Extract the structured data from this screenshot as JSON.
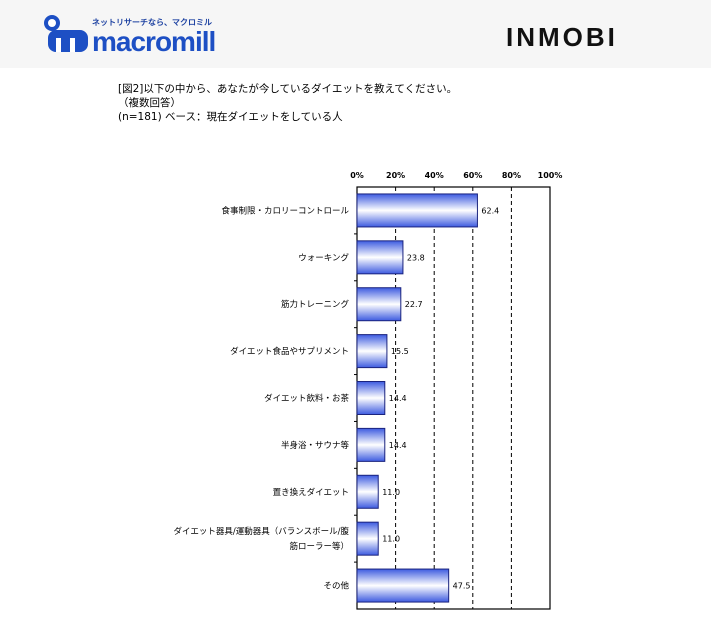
{
  "header": {
    "macromill_tagline": "ネットリサーチなら、マクロミル",
    "macromill_logo": "macromill",
    "inmobi_logo": "INMOBI"
  },
  "question": {
    "line1": "[図2]以下の中から、あなたが今しているダイエットを教えてください。",
    "line2": "（複数回答）",
    "line3": "(n=181) ベース：現在ダイエットをしている人"
  },
  "chart_data": {
    "type": "bar",
    "orientation": "horizontal",
    "categories": [
      "食事制限・カロリーコントロール",
      "ウォーキング",
      "筋力トレーニング",
      "ダイエット食品やサプリメント",
      "ダイエット飲料・お茶",
      "半身浴・サウナ等",
      "置き換えダイエット",
      "ダイエット器具/運動器具（バランスボール/腹筋ローラー等）",
      "その他"
    ],
    "category_lines": [
      [
        "食事制限・カロリーコントロール"
      ],
      [
        "ウォーキング"
      ],
      [
        "筋力トレーニング"
      ],
      [
        "ダイエット食品やサプリメント"
      ],
      [
        "ダイエット飲料・お茶"
      ],
      [
        "半身浴・サウナ等"
      ],
      [
        "置き換えダイエット"
      ],
      [
        "ダイエット器具/運動器具（バランスボール/腹",
        "筋ローラー等）"
      ],
      [
        "その他"
      ]
    ],
    "values": [
      62.4,
      23.8,
      22.7,
      15.5,
      14.4,
      14.4,
      11.0,
      11.0,
      47.5
    ],
    "data_labels": [
      "62.4",
      "23.8",
      "22.7",
      "15.5",
      "14.4",
      "14.4",
      "11.0",
      "11.0",
      "47.5"
    ],
    "xlim": [
      0,
      100
    ],
    "ticks": [
      "0%",
      "20%",
      "40%",
      "60%",
      "80%",
      "100%"
    ],
    "tick_values": [
      0,
      20,
      40,
      60,
      80,
      100
    ],
    "grid": "vertical dashed",
    "colors": {
      "bar_edge": "#1a237e",
      "bar_dark": "#3d5be0",
      "bar_light": "#ffffff"
    }
  }
}
